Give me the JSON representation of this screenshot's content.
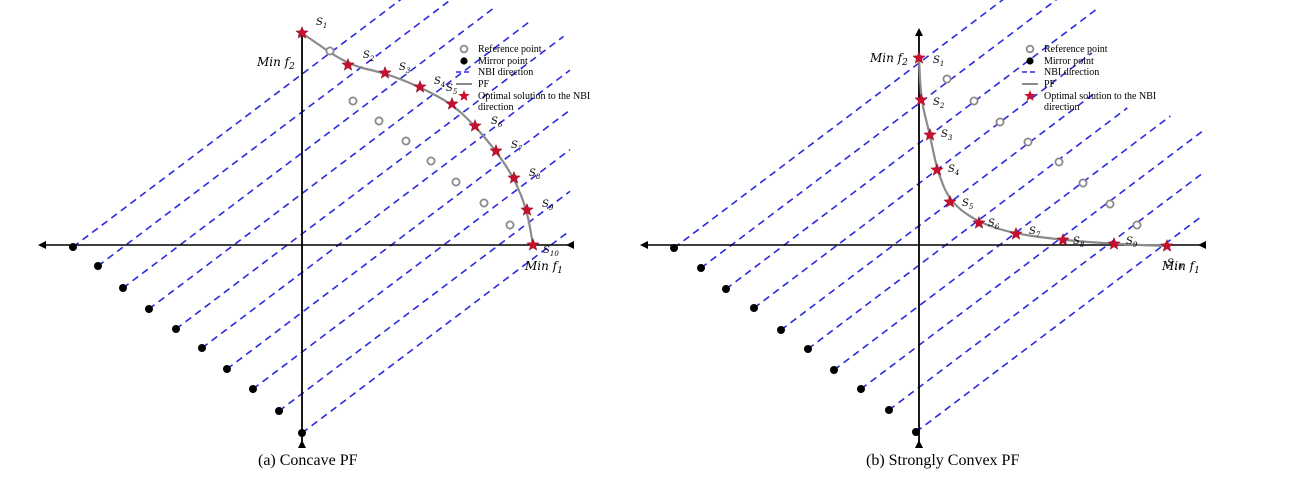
{
  "panels": [
    {
      "id": "a",
      "caption": "(a) Concave PF",
      "y_axis_label": "Min f",
      "y_axis_sub": "2",
      "x_axis_label": "Min f",
      "x_axis_sub": "1",
      "point_labels": [
        {
          "base": "S",
          "sub": "1"
        },
        {
          "base": "S",
          "sub": "2"
        },
        {
          "base": "S",
          "sub": "3"
        },
        {
          "base": "S",
          "sub": "4"
        },
        {
          "base": "S",
          "sub": "5"
        },
        {
          "base": "S",
          "sub": "6"
        },
        {
          "base": "S",
          "sub": "7"
        },
        {
          "base": "S",
          "sub": "8"
        },
        {
          "base": "S",
          "sub": "9"
        },
        {
          "base": "S",
          "sub": "10"
        }
      ]
    },
    {
      "id": "b",
      "caption": "(b) Strongly Convex PF",
      "y_axis_label": "Min f",
      "y_axis_sub": "2",
      "x_axis_label": "Min f",
      "x_axis_sub": "1",
      "point_labels": [
        {
          "base": "S",
          "sub": "1"
        },
        {
          "base": "S",
          "sub": "2"
        },
        {
          "base": "S",
          "sub": "3"
        },
        {
          "base": "S",
          "sub": "4"
        },
        {
          "base": "S",
          "sub": "5"
        },
        {
          "base": "S",
          "sub": "6"
        },
        {
          "base": "S",
          "sub": "7"
        },
        {
          "base": "S",
          "sub": "8"
        },
        {
          "base": "S",
          "sub": "9"
        },
        {
          "base": "S",
          "sub": "10"
        }
      ]
    }
  ],
  "legend": [
    {
      "key": "reference",
      "label": "Reference point"
    },
    {
      "key": "mirror",
      "label": "Mirror point"
    },
    {
      "key": "nbi",
      "label": "NBI direction"
    },
    {
      "key": "pf",
      "label": "PF"
    },
    {
      "key": "optimal",
      "label": "Optimal solution to the NBI",
      "label2": "direction"
    }
  ],
  "colors": {
    "nbi_line": "#2a2adf",
    "pf_curve": "#8a8a8a",
    "star": "#c8102e",
    "reference": "#8a8a8a",
    "mirror": "#000000",
    "axis": "#000000"
  }
}
